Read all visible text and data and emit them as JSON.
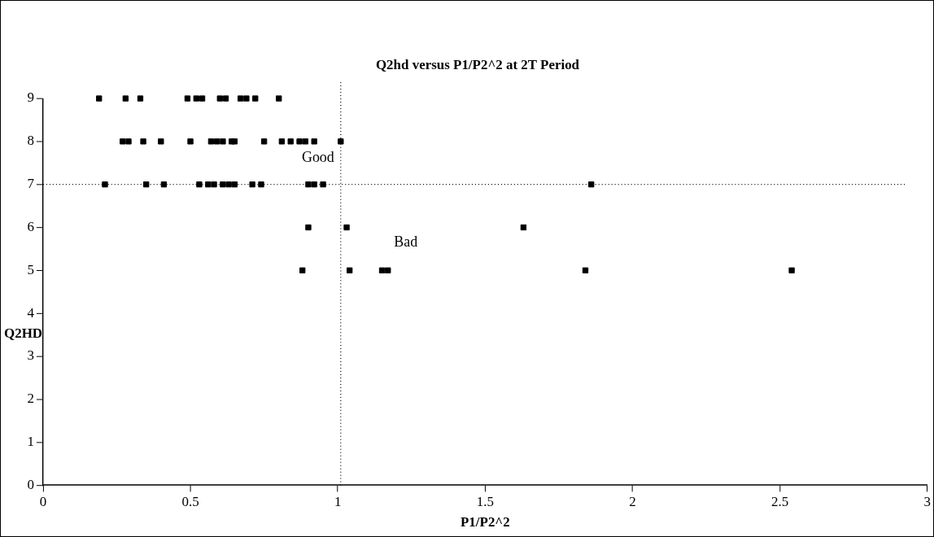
{
  "chart_data": {
    "type": "scatter",
    "title": "Q2hd versus P1/P2^2 at 2T Period",
    "xlabel": "P1/P2^2",
    "ylabel": "Q2HD",
    "x": [
      0.19,
      0.28,
      0.33,
      0.49,
      0.52,
      0.54,
      0.6,
      0.62,
      0.67,
      0.69,
      0.72,
      0.8,
      0.27,
      0.29,
      0.34,
      0.4,
      0.5,
      0.57,
      0.59,
      0.61,
      0.64,
      0.65,
      0.75,
      0.81,
      0.84,
      0.87,
      0.89,
      0.92,
      1.01,
      0.21,
      0.35,
      0.41,
      0.53,
      0.56,
      0.58,
      0.61,
      0.63,
      0.65,
      0.71,
      0.74,
      0.9,
      0.92,
      0.95,
      1.86,
      0.9,
      1.03,
      1.63,
      0.88,
      1.04,
      1.15,
      1.17,
      1.84,
      2.54
    ],
    "series": [
      {
        "color": "#000000",
        "values": [
          9,
          9,
          9,
          9,
          9,
          9,
          9,
          9,
          9,
          9,
          9,
          9,
          8,
          8,
          8,
          8,
          8,
          8,
          8,
          8,
          8,
          8,
          8,
          8,
          8,
          8,
          8,
          8,
          8,
          7,
          7,
          7,
          7,
          7,
          7,
          7,
          7,
          7,
          7,
          7,
          7,
          7,
          7,
          7,
          6,
          6,
          6,
          5,
          5,
          5,
          5,
          5,
          5
        ]
      }
    ],
    "xlim": [
      0,
      3
    ],
    "xticks": [
      0,
      0.5,
      1,
      1.5,
      2,
      2.5,
      3
    ],
    "ylim": [
      0,
      9
    ],
    "yticks": [
      0,
      1,
      2,
      3,
      4,
      5,
      6,
      7,
      8,
      9
    ],
    "grid": false,
    "legend": false,
    "marker": "square",
    "ref_lines": [
      {
        "axis": "y",
        "value": 7,
        "line_style": "dotted"
      },
      {
        "axis": "x",
        "value": 1.01,
        "line_style": "dotted"
      }
    ],
    "annotations": [
      "Good",
      "Bad"
    ]
  }
}
